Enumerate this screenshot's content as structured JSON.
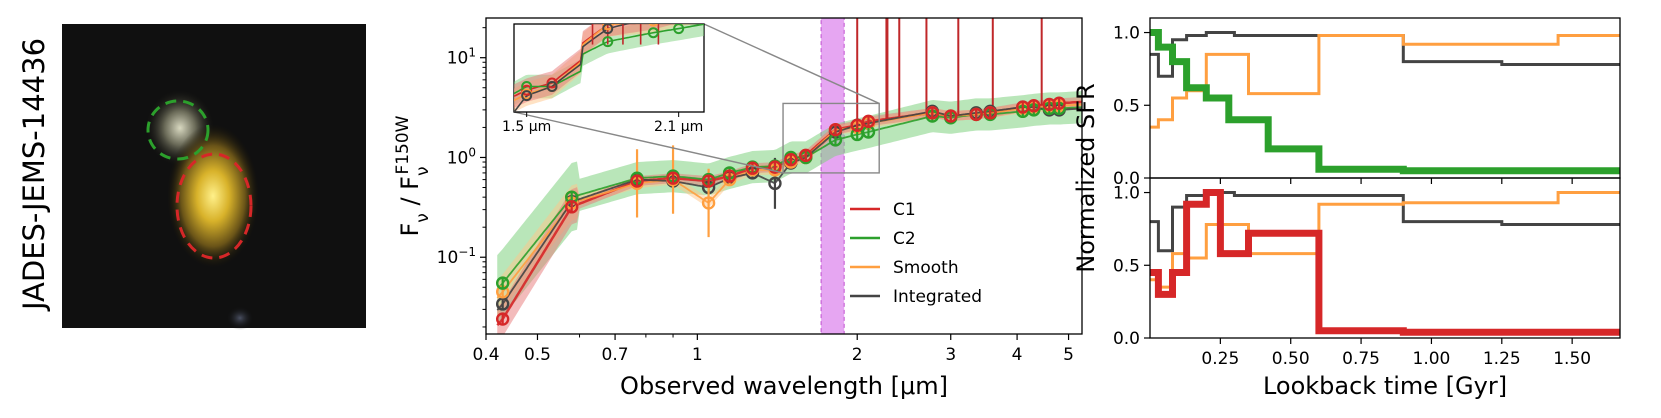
{
  "galaxy_label": "JADES-JEMS-14436",
  "chart_data": [
    {
      "type": "image",
      "regions": [
        {
          "name": "C2",
          "color": "#2ca02c",
          "shape": "dashed-ellipse"
        },
        {
          "name": "C1",
          "color": "#d62728",
          "shape": "dashed-ellipse"
        }
      ]
    },
    {
      "type": "scatter",
      "xlabel": "Observed wavelength [μm]",
      "ylabel_main": "F",
      "ylabel_sub": "ν",
      "ylabel_sep": " / F",
      "ylabel_sub2": "ν",
      "ylabel_sup2": "F150W",
      "xscale": "log",
      "yscale": "log",
      "xlim": [
        0.4,
        5.3
      ],
      "ylim": [
        0.017,
        25
      ],
      "xticks": [
        {
          "v": 0.4,
          "label": "0.4"
        },
        {
          "v": 0.5,
          "label": "0.5"
        },
        {
          "v": 0.7,
          "label": "0.7"
        },
        {
          "v": 1,
          "label": "1"
        },
        {
          "v": 2,
          "label": "2"
        },
        {
          "v": 3,
          "label": "3"
        },
        {
          "v": 4,
          "label": "4"
        },
        {
          "v": 5,
          "label": "5"
        }
      ],
      "yticks": [
        {
          "v": 0.1,
          "base": "10",
          "exp": "−1"
        },
        {
          "v": 1,
          "base": "10",
          "exp": "0"
        },
        {
          "v": 10,
          "base": "10",
          "exp": "1"
        }
      ],
      "highlight_band": {
        "x0": 1.71,
        "x1": 1.89,
        "color": "#dd88ee"
      },
      "legend_position": "lower-right",
      "series": [
        {
          "name": "C1",
          "color": "#d62728",
          "x": [
            0.43,
            0.58,
            0.77,
            0.9,
            1.05,
            1.15,
            1.27,
            1.4,
            1.5,
            1.6,
            1.82,
            2.0,
            2.1,
            2.77,
            3.0,
            3.35,
            3.56,
            4.1,
            4.3,
            4.6,
            4.8
          ],
          "y": [
            0.024,
            0.32,
            0.58,
            0.62,
            0.58,
            0.65,
            0.78,
            0.8,
            0.95,
            1.05,
            1.9,
            2.1,
            2.3,
            2.8,
            2.6,
            2.7,
            2.8,
            3.2,
            3.3,
            3.4,
            3.5
          ]
        },
        {
          "name": "C2",
          "color": "#2ca02c",
          "x": [
            0.43,
            0.58,
            0.77,
            0.9,
            1.05,
            1.15,
            1.27,
            1.4,
            1.5,
            1.6,
            1.82,
            2.0,
            2.1,
            2.77,
            3.0,
            3.35,
            3.56,
            4.1,
            4.3,
            4.6,
            4.8
          ],
          "y": [
            0.055,
            0.4,
            0.62,
            0.65,
            0.6,
            0.7,
            0.8,
            0.82,
            1.0,
            1.0,
            1.5,
            1.7,
            1.8,
            2.6,
            2.5,
            2.7,
            2.7,
            2.9,
            3.0,
            3.1,
            3.1
          ]
        },
        {
          "name": "Smooth",
          "color": "#ff9f40",
          "x": [
            0.43,
            0.58,
            0.77,
            0.9,
            1.05,
            1.15,
            1.27,
            1.4,
            1.5,
            1.6,
            1.82,
            2.0,
            2.1,
            2.77,
            3.0,
            3.35,
            3.56,
            4.1,
            4.3,
            4.6,
            4.8
          ],
          "y": [
            0.045,
            0.35,
            0.55,
            0.6,
            0.35,
            0.6,
            0.75,
            0.75,
            0.9,
            1.0,
            1.9,
            2.0,
            2.2,
            2.8,
            2.6,
            2.7,
            2.8,
            3.1,
            3.2,
            3.2,
            3.3
          ]
        },
        {
          "name": "Integrated",
          "color": "#444444",
          "x": [
            0.43,
            0.58,
            0.77,
            0.9,
            1.05,
            1.15,
            1.27,
            1.4,
            1.5,
            1.6,
            1.82,
            2.0,
            2.1,
            2.77,
            3.0,
            3.35,
            3.56,
            4.1,
            4.3,
            4.6,
            4.8
          ],
          "y": [
            0.034,
            0.36,
            0.6,
            0.58,
            0.5,
            0.62,
            0.7,
            0.55,
            0.88,
            1.0,
            1.8,
            2.1,
            2.2,
            2.9,
            2.6,
            2.8,
            2.9,
            3.2,
            3.2,
            3.0,
            3.0
          ]
        }
      ],
      "inset": {
        "xticks": [
          {
            "v": 1.5,
            "label": "1.5 μm"
          },
          {
            "v": 2.1,
            "label": "2.1 μm"
          }
        ],
        "xlim": [
          1.45,
          2.2
        ],
        "ylim": [
          0.7,
          2.4
        ]
      }
    },
    {
      "type": "line",
      "step": true,
      "xlabel": "Lookback time [Gyr]",
      "ylabel": "Normalized SFR",
      "xlim": [
        0,
        1.67
      ],
      "xticks": [
        0.25,
        0.5,
        0.75,
        1.0,
        1.25,
        1.5
      ],
      "xtick_labels": [
        "0.25",
        "0.50",
        "0.75",
        "1.00",
        "1.25",
        "1.50"
      ],
      "yticks": [
        0.0,
        0.5,
        1.0
      ],
      "ytick_labels": [
        "0.0",
        "0.5",
        "1.0"
      ],
      "panels": [
        {
          "ylim": [
            0,
            1.1
          ],
          "series": [
            {
              "name": "Integrated",
              "color": "#444444",
              "width": 3,
              "edges": [
                0,
                0.03,
                0.08,
                0.13,
                0.2,
                0.3,
                0.6,
                0.9,
                1.25,
                1.67
              ],
              "values": [
                0.85,
                0.7,
                0.95,
                0.98,
                1.0,
                0.98,
                0.98,
                0.8,
                0.78
              ]
            },
            {
              "name": "Smooth",
              "color": "#ff9f40",
              "width": 3,
              "edges": [
                0,
                0.03,
                0.08,
                0.13,
                0.2,
                0.35,
                0.6,
                0.9,
                1.45,
                1.67
              ],
              "values": [
                0.35,
                0.4,
                0.55,
                0.6,
                0.85,
                0.58,
                0.98,
                0.92,
                0.98
              ]
            },
            {
              "name": "C2",
              "color": "#2ca02c",
              "width": 7,
              "edges": [
                0,
                0.03,
                0.08,
                0.13,
                0.2,
                0.28,
                0.42,
                0.6,
                0.9,
                1.67
              ],
              "values": [
                1.0,
                0.9,
                0.8,
                0.62,
                0.55,
                0.4,
                0.2,
                0.06,
                0.05
              ]
            }
          ]
        },
        {
          "ylim": [
            0,
            1.1
          ],
          "series": [
            {
              "name": "Integrated",
              "color": "#444444",
              "width": 3,
              "edges": [
                0,
                0.03,
                0.08,
                0.13,
                0.2,
                0.3,
                0.6,
                0.9,
                1.25,
                1.67
              ],
              "values": [
                0.8,
                0.6,
                0.9,
                0.98,
                1.0,
                0.98,
                0.98,
                0.8,
                0.78
              ]
            },
            {
              "name": "Smooth",
              "color": "#ff9f40",
              "width": 3,
              "edges": [
                0,
                0.03,
                0.08,
                0.13,
                0.2,
                0.35,
                0.6,
                0.9,
                1.45,
                1.67
              ],
              "values": [
                0.4,
                0.35,
                0.58,
                0.55,
                0.78,
                0.58,
                0.92,
                0.93,
                1.0
              ]
            },
            {
              "name": "C1",
              "color": "#d62728",
              "width": 7,
              "edges": [
                0,
                0.03,
                0.08,
                0.13,
                0.2,
                0.25,
                0.35,
                0.6,
                0.9,
                1.67
              ],
              "values": [
                0.45,
                0.3,
                0.45,
                0.92,
                1.0,
                0.58,
                0.72,
                0.05,
                0.04
              ]
            }
          ]
        }
      ]
    }
  ]
}
